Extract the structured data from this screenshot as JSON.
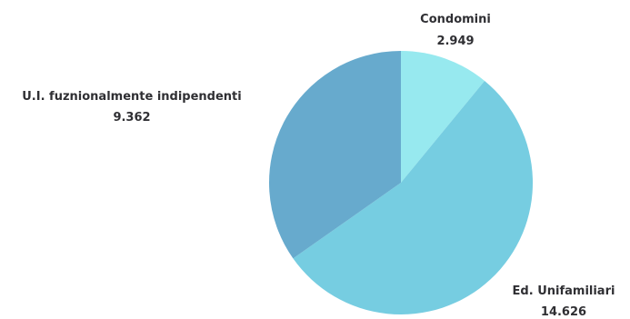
{
  "chart_data": {
    "type": "pie",
    "title": "",
    "start_angle_deg": 0,
    "direction": "clockwise",
    "slices": [
      {
        "label": "Condomini",
        "value_text": "2.949",
        "value": 2949,
        "color": "#97e9ef"
      },
      {
        "label": "Ed. Unifamiliari",
        "value_text": "14.626",
        "value": 14626,
        "color": "#76cde1"
      },
      {
        "label": "U.I. fuznionalmente indipendenti",
        "value_text": "9.362",
        "value": 9362,
        "color": "#67aacd"
      }
    ]
  }
}
